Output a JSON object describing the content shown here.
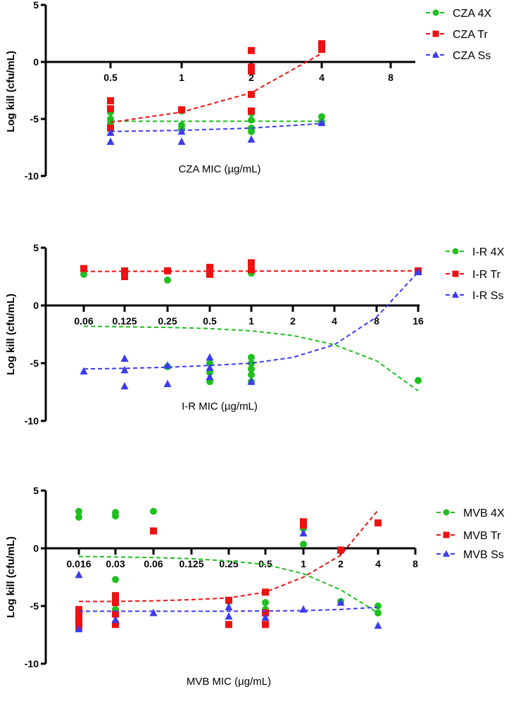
{
  "chart_data": [
    {
      "type": "scatter",
      "xlabel": "CZA MIC (µg/mL)",
      "ylabel": "Log  kill (cfu/mL)",
      "x_scale": "log2",
      "x_ticks": [
        "0.5",
        "1",
        "2",
        "4",
        "8"
      ],
      "y_ticks": [
        5,
        0,
        -5,
        -10
      ],
      "ylim": [
        -10,
        5
      ],
      "legend_position": "top-right",
      "series": [
        {
          "name": "CZA 4X",
          "color": "#1fbf1f",
          "marker": "circle",
          "points": [
            [
              "0.5",
              -4.4
            ],
            [
              "0.5",
              -5.0
            ],
            [
              "0.5",
              -5.35
            ],
            [
              "0.5",
              -5.7
            ],
            [
              "1",
              -4.3
            ],
            [
              "1",
              -5.55
            ],
            [
              "1",
              -5.9
            ],
            [
              "2",
              -4.5
            ],
            [
              "2",
              -5.1
            ],
            [
              "2",
              -5.8
            ],
            [
              "2",
              -6.1
            ],
            [
              "4",
              -4.8
            ],
            [
              "4",
              -5.25
            ]
          ],
          "fit": [
            [
              "0.5",
              -5.2
            ],
            [
              "1",
              -5.2
            ],
            [
              "2",
              -5.2
            ],
            [
              "4",
              -5.2
            ]
          ]
        },
        {
          "name": "CZA Tr",
          "color": "#ee1111",
          "marker": "square",
          "points": [
            [
              "0.5",
              -3.4
            ],
            [
              "0.5",
              -4.1
            ],
            [
              "0.5",
              -5.8
            ],
            [
              "1",
              -4.2
            ],
            [
              "2",
              1.0
            ],
            [
              "2",
              -0.45
            ],
            [
              "2",
              -0.8
            ],
            [
              "2",
              -2.85
            ],
            [
              "2",
              -4.3
            ],
            [
              "4",
              1.6
            ],
            [
              "4",
              1.1
            ]
          ],
          "fit": [
            [
              "0.5",
              -5.3
            ],
            [
              "1",
              -4.4
            ],
            [
              "2",
              -2.7
            ],
            [
              "4",
              0.75
            ]
          ]
        },
        {
          "name": "CZA Ss",
          "color": "#3b3bf0",
          "marker": "triangle",
          "points": [
            [
              "0.5",
              -6.2
            ],
            [
              "0.5",
              -7.0
            ],
            [
              "1",
              -6.1
            ],
            [
              "1",
              -7.0
            ],
            [
              "2",
              -6.8
            ],
            [
              "4",
              -5.35
            ]
          ],
          "fit": [
            [
              "0.5",
              -6.1
            ],
            [
              "1",
              -6.0
            ],
            [
              "2",
              -5.8
            ],
            [
              "4",
              -5.4
            ]
          ]
        }
      ]
    },
    {
      "type": "scatter",
      "xlabel": "I-R MIC (µg/mL)",
      "ylabel": "Log  kill (cfu/mL)",
      "x_scale": "log2",
      "x_ticks": [
        "0.06",
        "0.125",
        "0.25",
        "0.5",
        "1",
        "2",
        "4",
        "8",
        "16"
      ],
      "y_ticks": [
        5,
        0,
        -5,
        -10
      ],
      "ylim": [
        -10,
        5
      ],
      "legend_position": "top-right",
      "series": [
        {
          "name": "I-R 4X",
          "color": "#1fbf1f",
          "marker": "circle",
          "points": [
            [
              "0.06",
              2.7
            ],
            [
              "0.125",
              3.0
            ],
            [
              "0.125",
              2.6
            ],
            [
              "0.25",
              2.2
            ],
            [
              "0.25",
              -5.3
            ],
            [
              "0.5",
              3.2
            ],
            [
              "0.5",
              2.8
            ],
            [
              "0.5",
              -5.0
            ],
            [
              "0.5",
              -5.8
            ],
            [
              "0.5",
              -6.6
            ],
            [
              "1",
              2.8
            ],
            [
              "1",
              -4.5
            ],
            [
              "1",
              -5.0
            ],
            [
              "1",
              -5.5
            ],
            [
              "1",
              -6.0
            ],
            [
              "1",
              -6.6
            ],
            [
              "16",
              -6.5
            ]
          ],
          "fit": [
            [
              "0.06",
              -1.8
            ],
            [
              "0.25",
              -1.9
            ],
            [
              "0.5",
              -2.0
            ],
            [
              "1",
              -2.2
            ],
            [
              "2",
              -2.6
            ],
            [
              "4",
              -3.4
            ],
            [
              "8",
              -4.8
            ],
            [
              "16",
              -7.4
            ]
          ]
        },
        {
          "name": "I-R Tr",
          "color": "#ee1111",
          "marker": "square",
          "points": [
            [
              "0.06",
              3.2
            ],
            [
              "0.125",
              3.0
            ],
            [
              "0.125",
              2.5
            ],
            [
              "0.25",
              3.0
            ],
            [
              "0.5",
              3.3
            ],
            [
              "0.5",
              2.7
            ],
            [
              "1",
              3.7
            ],
            [
              "1",
              3.1
            ],
            [
              "16",
              3.0
            ]
          ],
          "fit": [
            [
              "0.06",
              2.95
            ],
            [
              "16",
              3.0
            ]
          ]
        },
        {
          "name": "I-R Ss",
          "color": "#3b3bf0",
          "marker": "triangle",
          "points": [
            [
              "0.06",
              -5.7
            ],
            [
              "0.125",
              -4.6
            ],
            [
              "0.125",
              -5.6
            ],
            [
              "0.125",
              -7.0
            ],
            [
              "0.25",
              -5.2
            ],
            [
              "0.25",
              -6.8
            ],
            [
              "0.5",
              -4.5
            ],
            [
              "0.5",
              -5.4
            ],
            [
              "0.5",
              -6.2
            ],
            [
              "1",
              -6.6
            ],
            [
              "16",
              2.9
            ]
          ],
          "fit": [
            [
              "0.06",
              -5.5
            ],
            [
              "0.125",
              -5.45
            ],
            [
              "0.25",
              -5.35
            ],
            [
              "0.5",
              -5.2
            ],
            [
              "1",
              -5.0
            ],
            [
              "2",
              -4.5
            ],
            [
              "4",
              -3.4
            ],
            [
              "8",
              -1.0
            ],
            [
              "16",
              2.9
            ]
          ]
        }
      ]
    },
    {
      "type": "scatter",
      "xlabel": "MVB MIC (µg/mL)",
      "ylabel": "Log  kill (cfu/mL)",
      "x_scale": "log2",
      "x_ticks": [
        "0.016",
        "0.03",
        "0.06",
        "0.125",
        "0.25",
        "0.5",
        "1",
        "2",
        "4",
        "8"
      ],
      "y_ticks": [
        5,
        0,
        -5,
        -10
      ],
      "ylim": [
        -10,
        5
      ],
      "legend_position": "top-right",
      "series": [
        {
          "name": "MVB 4X",
          "color": "#1fbf1f",
          "marker": "circle",
          "points": [
            [
              "0.016",
              3.2
            ],
            [
              "0.016",
              2.7
            ],
            [
              "0.03",
              3.1
            ],
            [
              "0.03",
              2.8
            ],
            [
              "0.03",
              -2.7
            ],
            [
              "0.03",
              -4.1
            ],
            [
              "0.03",
              -5.3
            ],
            [
              "0.06",
              3.2
            ],
            [
              "0.25",
              -4.6
            ],
            [
              "0.25",
              -6.6
            ],
            [
              "0.5",
              -4.7
            ],
            [
              "0.5",
              -5.3
            ],
            [
              "0.5",
              -6.6
            ],
            [
              "1",
              1.7
            ],
            [
              "1",
              0.35
            ],
            [
              "2",
              -4.6
            ],
            [
              "4",
              -5.0
            ],
            [
              "4",
              -5.6
            ]
          ],
          "fit": [
            [
              "0.016",
              -0.7
            ],
            [
              "0.03",
              -0.75
            ],
            [
              "0.06",
              -0.8
            ],
            [
              "0.125",
              -0.9
            ],
            [
              "0.25",
              -1.1
            ],
            [
              "0.5",
              -1.4
            ],
            [
              "1",
              -2.2
            ],
            [
              "2",
              -3.6
            ],
            [
              "4",
              -5.6
            ]
          ]
        },
        {
          "name": "MVB Tr",
          "color": "#ee1111",
          "marker": "square",
          "points": [
            [
              "0.016",
              -5.3
            ],
            [
              "0.016",
              -5.8
            ],
            [
              "0.016",
              -6.4
            ],
            [
              "0.016",
              -6.8
            ],
            [
              "0.03",
              -4.1
            ],
            [
              "0.03",
              -4.7
            ],
            [
              "0.03",
              -5.7
            ],
            [
              "0.03",
              -6.6
            ],
            [
              "0.06",
              1.5
            ],
            [
              "0.25",
              -4.5
            ],
            [
              "0.25",
              -6.6
            ],
            [
              "0.5",
              -3.8
            ],
            [
              "0.5",
              -5.6
            ],
            [
              "0.5",
              -6.6
            ],
            [
              "1",
              2.3
            ],
            [
              "1",
              2.0
            ],
            [
              "2",
              -0.15
            ],
            [
              "4",
              2.2
            ]
          ],
          "fit": [
            [
              "0.016",
              -4.6
            ],
            [
              "0.03",
              -4.6
            ],
            [
              "0.06",
              -4.55
            ],
            [
              "0.125",
              -4.45
            ],
            [
              "0.25",
              -4.3
            ],
            [
              "0.5",
              -3.8
            ],
            [
              "1",
              -2.5
            ],
            [
              "2",
              -0.6
            ],
            [
              "4",
              3.3
            ]
          ]
        },
        {
          "name": "MVB Ss",
          "color": "#3b3bf0",
          "marker": "triangle",
          "points": [
            [
              "0.016",
              -2.3
            ],
            [
              "0.016",
              -7.0
            ],
            [
              "0.03",
              -6.2
            ],
            [
              "0.06",
              -5.6
            ],
            [
              "0.25",
              -5.1
            ],
            [
              "0.25",
              -5.9
            ],
            [
              "0.5",
              -6.0
            ],
            [
              "1",
              1.3
            ],
            [
              "1",
              -5.3
            ],
            [
              "2",
              -4.7
            ],
            [
              "4",
              -6.7
            ]
          ],
          "fit": [
            [
              "0.016",
              -5.45
            ],
            [
              "0.25",
              -5.45
            ],
            [
              "1",
              -5.4
            ],
            [
              "2",
              -5.3
            ],
            [
              "4",
              -5.1
            ]
          ]
        }
      ]
    }
  ]
}
